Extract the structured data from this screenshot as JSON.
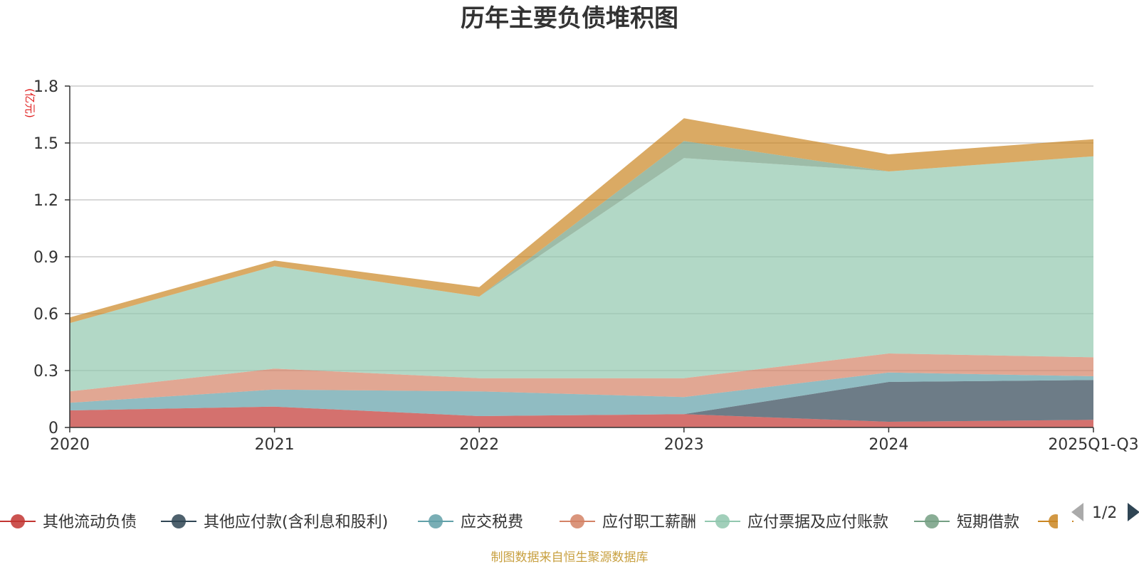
{
  "chart_data": {
    "type": "area",
    "stacked": true,
    "title": "历年主要负债堆积图",
    "unit_label": "(亿元)",
    "categories": [
      "2020",
      "2021",
      "2022",
      "2023",
      "2024",
      "2025Q1-Q3"
    ],
    "ylim": [
      0,
      1.8
    ],
    "y_ticks": [
      "0",
      "0.3",
      "0.6",
      "0.9",
      "1.2",
      "1.5",
      "1.8"
    ],
    "grid": true,
    "legend_position": "bottom",
    "series": [
      {
        "name": "其他流动负债",
        "color": "#c23531",
        "values": [
          0.09,
          0.11,
          0.06,
          0.07,
          0.03,
          0.04
        ]
      },
      {
        "name": "其他应付款(含利息和股利)",
        "color": "#2f4554",
        "values": [
          0.0,
          0.0,
          0.0,
          0.0,
          0.21,
          0.21
        ]
      },
      {
        "name": "应交税费",
        "color": "#61a0a8",
        "values": [
          0.04,
          0.09,
          0.13,
          0.09,
          0.05,
          0.02
        ]
      },
      {
        "name": "应付职工薪酬",
        "color": "#d48265",
        "values": [
          0.06,
          0.11,
          0.07,
          0.1,
          0.1,
          0.1
        ]
      },
      {
        "name": "应付票据及应付账款",
        "color": "#91c7ae",
        "values": [
          0.36,
          0.54,
          0.43,
          1.16,
          0.96,
          1.06
        ]
      },
      {
        "name": "短期借款",
        "color": "#749f83",
        "values": [
          0.0,
          0.0,
          0.0,
          0.09,
          0.0,
          0.0
        ]
      },
      {
        "name": "",
        "color": "#ca8622",
        "values": [
          0.03,
          0.03,
          0.05,
          0.12,
          0.09,
          0.09
        ]
      }
    ]
  },
  "legend": {
    "page_indicator": "1/2"
  },
  "footer": {
    "source": "制图数据来自恒生聚源数据库"
  }
}
